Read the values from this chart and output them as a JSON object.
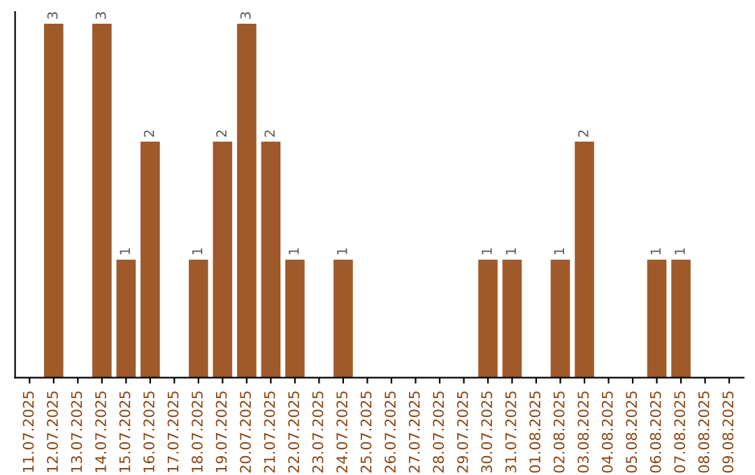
{
  "chart_data": {
    "type": "bar",
    "categories": [
      "11.07.2025",
      "12.07.2025",
      "13.07.2025",
      "14.07.2025",
      "15.07.2025",
      "16.07.2025",
      "17.07.2025",
      "18.07.2025",
      "19.07.2025",
      "20.07.2025",
      "21.07.2025",
      "22.07.2025",
      "23.07.2025",
      "24.07.2025",
      "25.07.2025",
      "26.07.2025",
      "27.07.2025",
      "28.07.2025",
      "29.07.2025",
      "30.07.2025",
      "31.07.2025",
      "01.08.2025",
      "02.08.2025",
      "03.08.2025",
      "04.08.2025",
      "05.08.2025",
      "06.08.2025",
      "07.08.2025",
      "08.08.2025",
      "09.08.2025"
    ],
    "values": [
      0,
      3,
      0,
      3,
      1,
      2,
      0,
      1,
      2,
      3,
      2,
      1,
      0,
      1,
      0,
      0,
      0,
      0,
      0,
      1,
      1,
      0,
      1,
      2,
      0,
      0,
      1,
      1,
      0,
      0
    ],
    "value_labels": [
      null,
      "3",
      null,
      "3",
      "1",
      "2",
      null,
      "1",
      "2",
      "3",
      "2",
      "1",
      null,
      "1",
      null,
      null,
      null,
      null,
      null,
      "1",
      "1",
      null,
      "1",
      "2",
      null,
      null,
      "1",
      "1",
      null,
      null
    ],
    "color": "#a0592a",
    "ylim": [
      0,
      3.1
    ],
    "tick_labels": "x",
    "grid": false,
    "legend": false
  }
}
